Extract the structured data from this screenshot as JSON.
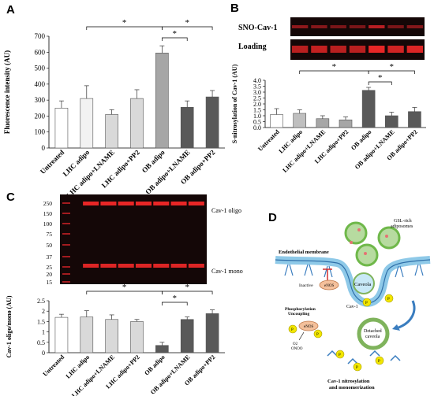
{
  "panel_letters": {
    "a": "A",
    "b": "B",
    "c": "C",
    "d": "D"
  },
  "asterisk": "*",
  "blot_b": {
    "sno_label": "SNO-Cav-1",
    "loading_label": "Loading"
  },
  "blot_c": {
    "ladder": [
      "250",
      "150",
      "100",
      "75",
      "50",
      "37",
      "25",
      "20",
      "15"
    ],
    "oligo_label": "Cav-1 oligo",
    "mono_label": "Cav-1 mono"
  },
  "diagram": {
    "endothelial_membrane": "Endothelial membrane",
    "gsl_line1": "GSL-rich",
    "gsl_line2": "adiposomes",
    "caveola": "Caveola",
    "inactive": "Inactive",
    "enos": "eNOS",
    "cav1": "Cav-1",
    "phospho_line1": "Phosphorylation",
    "phospho_line2": "Uncoupling",
    "detached_line1": "Detached",
    "detached_line2": "caveola",
    "o2": "O2",
    "onoo": "ONOO",
    "p": "P",
    "caption_line1": "Cav-1 nitrosylation",
    "caption_line2": "and monomerization"
  },
  "colors": {
    "white_bar": "#ffffff",
    "light_bar": "#d9d9d9",
    "mid_bar": "#a6a6a6",
    "dark_bar": "#595959",
    "blot_bg": "#140707",
    "blot_band": "#e0242a",
    "caveola_green": "#6fb84a",
    "phospho_yellow": "#f2e600",
    "enos_fill": "#f4c09b",
    "membrane_blue": "#4a90c8"
  },
  "chart_data": [
    {
      "type": "bar",
      "panel": "A",
      "ylabel": "Fluorescence intensity (AU)",
      "ylim": [
        0,
        700
      ],
      "yticks": [
        0,
        100,
        200,
        300,
        400,
        500,
        600,
        700
      ],
      "categories": [
        "Untreated",
        "LHC adipo",
        "LHC adipo+LNAME",
        "LHC adipo+PP2",
        "OB adipo",
        "OB adipo+LNAME",
        "OB adipo+PP2"
      ],
      "values": [
        250,
        310,
        210,
        310,
        595,
        255,
        320
      ],
      "errors": [
        45,
        80,
        30,
        55,
        45,
        40,
        40
      ],
      "bar_colors": [
        "#ffffff",
        "#f2f2f2",
        "#d9d9d9",
        "#d9d9d9",
        "#a6a6a6",
        "#595959",
        "#595959"
      ],
      "brackets": [
        [
          1,
          4
        ],
        [
          4,
          6
        ],
        [
          4,
          5
        ]
      ]
    },
    {
      "type": "bar",
      "panel": "B",
      "ylabel": "S-nitrosylation of Cav-1 (AU)",
      "ylim": [
        0,
        4
      ],
      "yticks": [
        "0.0",
        "0.5",
        "1.0",
        "1.5",
        "2.0",
        "2.5",
        "3.0",
        "3.5",
        "4.0"
      ],
      "categories": [
        "Untreated",
        "LHC adipo",
        "LHC adipo+LNAME",
        "LHC adipo+PP2",
        "OB adipo",
        "OB adipo+LNAME",
        "OB adipo+PP2"
      ],
      "values": [
        1.1,
        1.2,
        0.75,
        0.65,
        3.15,
        1.0,
        1.35
      ],
      "errors": [
        0.5,
        0.3,
        0.25,
        0.25,
        0.25,
        0.3,
        0.35
      ],
      "bar_colors": [
        "#ffffff",
        "#bfbfbf",
        "#a6a6a6",
        "#a6a6a6",
        "#595959",
        "#595959",
        "#595959"
      ],
      "brackets": [
        [
          1,
          4
        ],
        [
          4,
          6
        ],
        [
          4,
          5
        ]
      ]
    },
    {
      "type": "bar",
      "panel": "C",
      "ylabel": "Cav-1 oligo/mono (AU)",
      "ylim": [
        0,
        2.5
      ],
      "yticks": [
        "0",
        "0.5",
        "1",
        "1.5",
        "2",
        "2.5"
      ],
      "categories": [
        "Untreated",
        "LHC adipo",
        "LHC adipo+LNAME",
        "LHC adipo+PP2",
        "OB adipo",
        "OB adipo+LNAME",
        "OB adipo+PP2"
      ],
      "values": [
        1.7,
        1.72,
        1.6,
        1.5,
        0.35,
        1.6,
        1.88
      ],
      "errors": [
        0.15,
        0.3,
        0.22,
        0.1,
        0.15,
        0.12,
        0.18
      ],
      "bar_colors": [
        "#ffffff",
        "#d9d9d9",
        "#d9d9d9",
        "#d9d9d9",
        "#595959",
        "#595959",
        "#595959"
      ],
      "brackets": [
        [
          1,
          4
        ],
        [
          4,
          6
        ],
        [
          4,
          5
        ]
      ]
    }
  ]
}
